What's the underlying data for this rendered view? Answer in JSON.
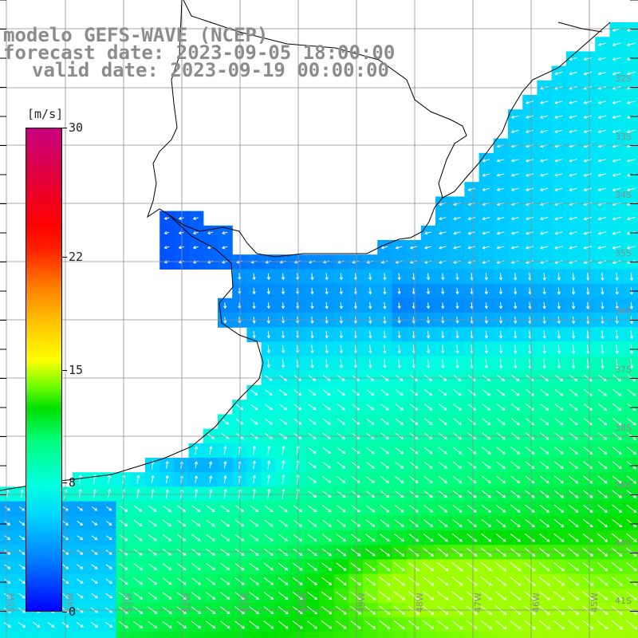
{
  "title": {
    "model": "modelo GEFS-WAVE (NCEP)",
    "forecast": "forecast date: 2023-09-05 18:00:00",
    "valid": "valid date: 2023-09-19 00:00:00"
  },
  "colorbar": {
    "unit": "[m/s]",
    "ticks": [
      "30",
      "22",
      "15",
      "8",
      "0"
    ],
    "tick_values": [
      30,
      22,
      15,
      8,
      0
    ],
    "min": 0,
    "max": 30
  },
  "lat_labels": [
    "32S",
    "33S",
    "34S",
    "35S",
    "36S",
    "37S",
    "38S",
    "39S",
    "40S",
    "41S"
  ],
  "lon_labels": [
    "55W",
    "54W",
    "53W",
    "52W",
    "51W",
    "50W",
    "49W",
    "48W",
    "47W",
    "46W",
    "45W"
  ],
  "colors": {
    "grid": "#8c8c8c",
    "coast": "#000000",
    "arrow": "#ffffff",
    "title": "#8c8c8c"
  },
  "field": {
    "variable": "wind speed",
    "units": "m/s",
    "typical_range": [
      3,
      13
    ]
  }
}
